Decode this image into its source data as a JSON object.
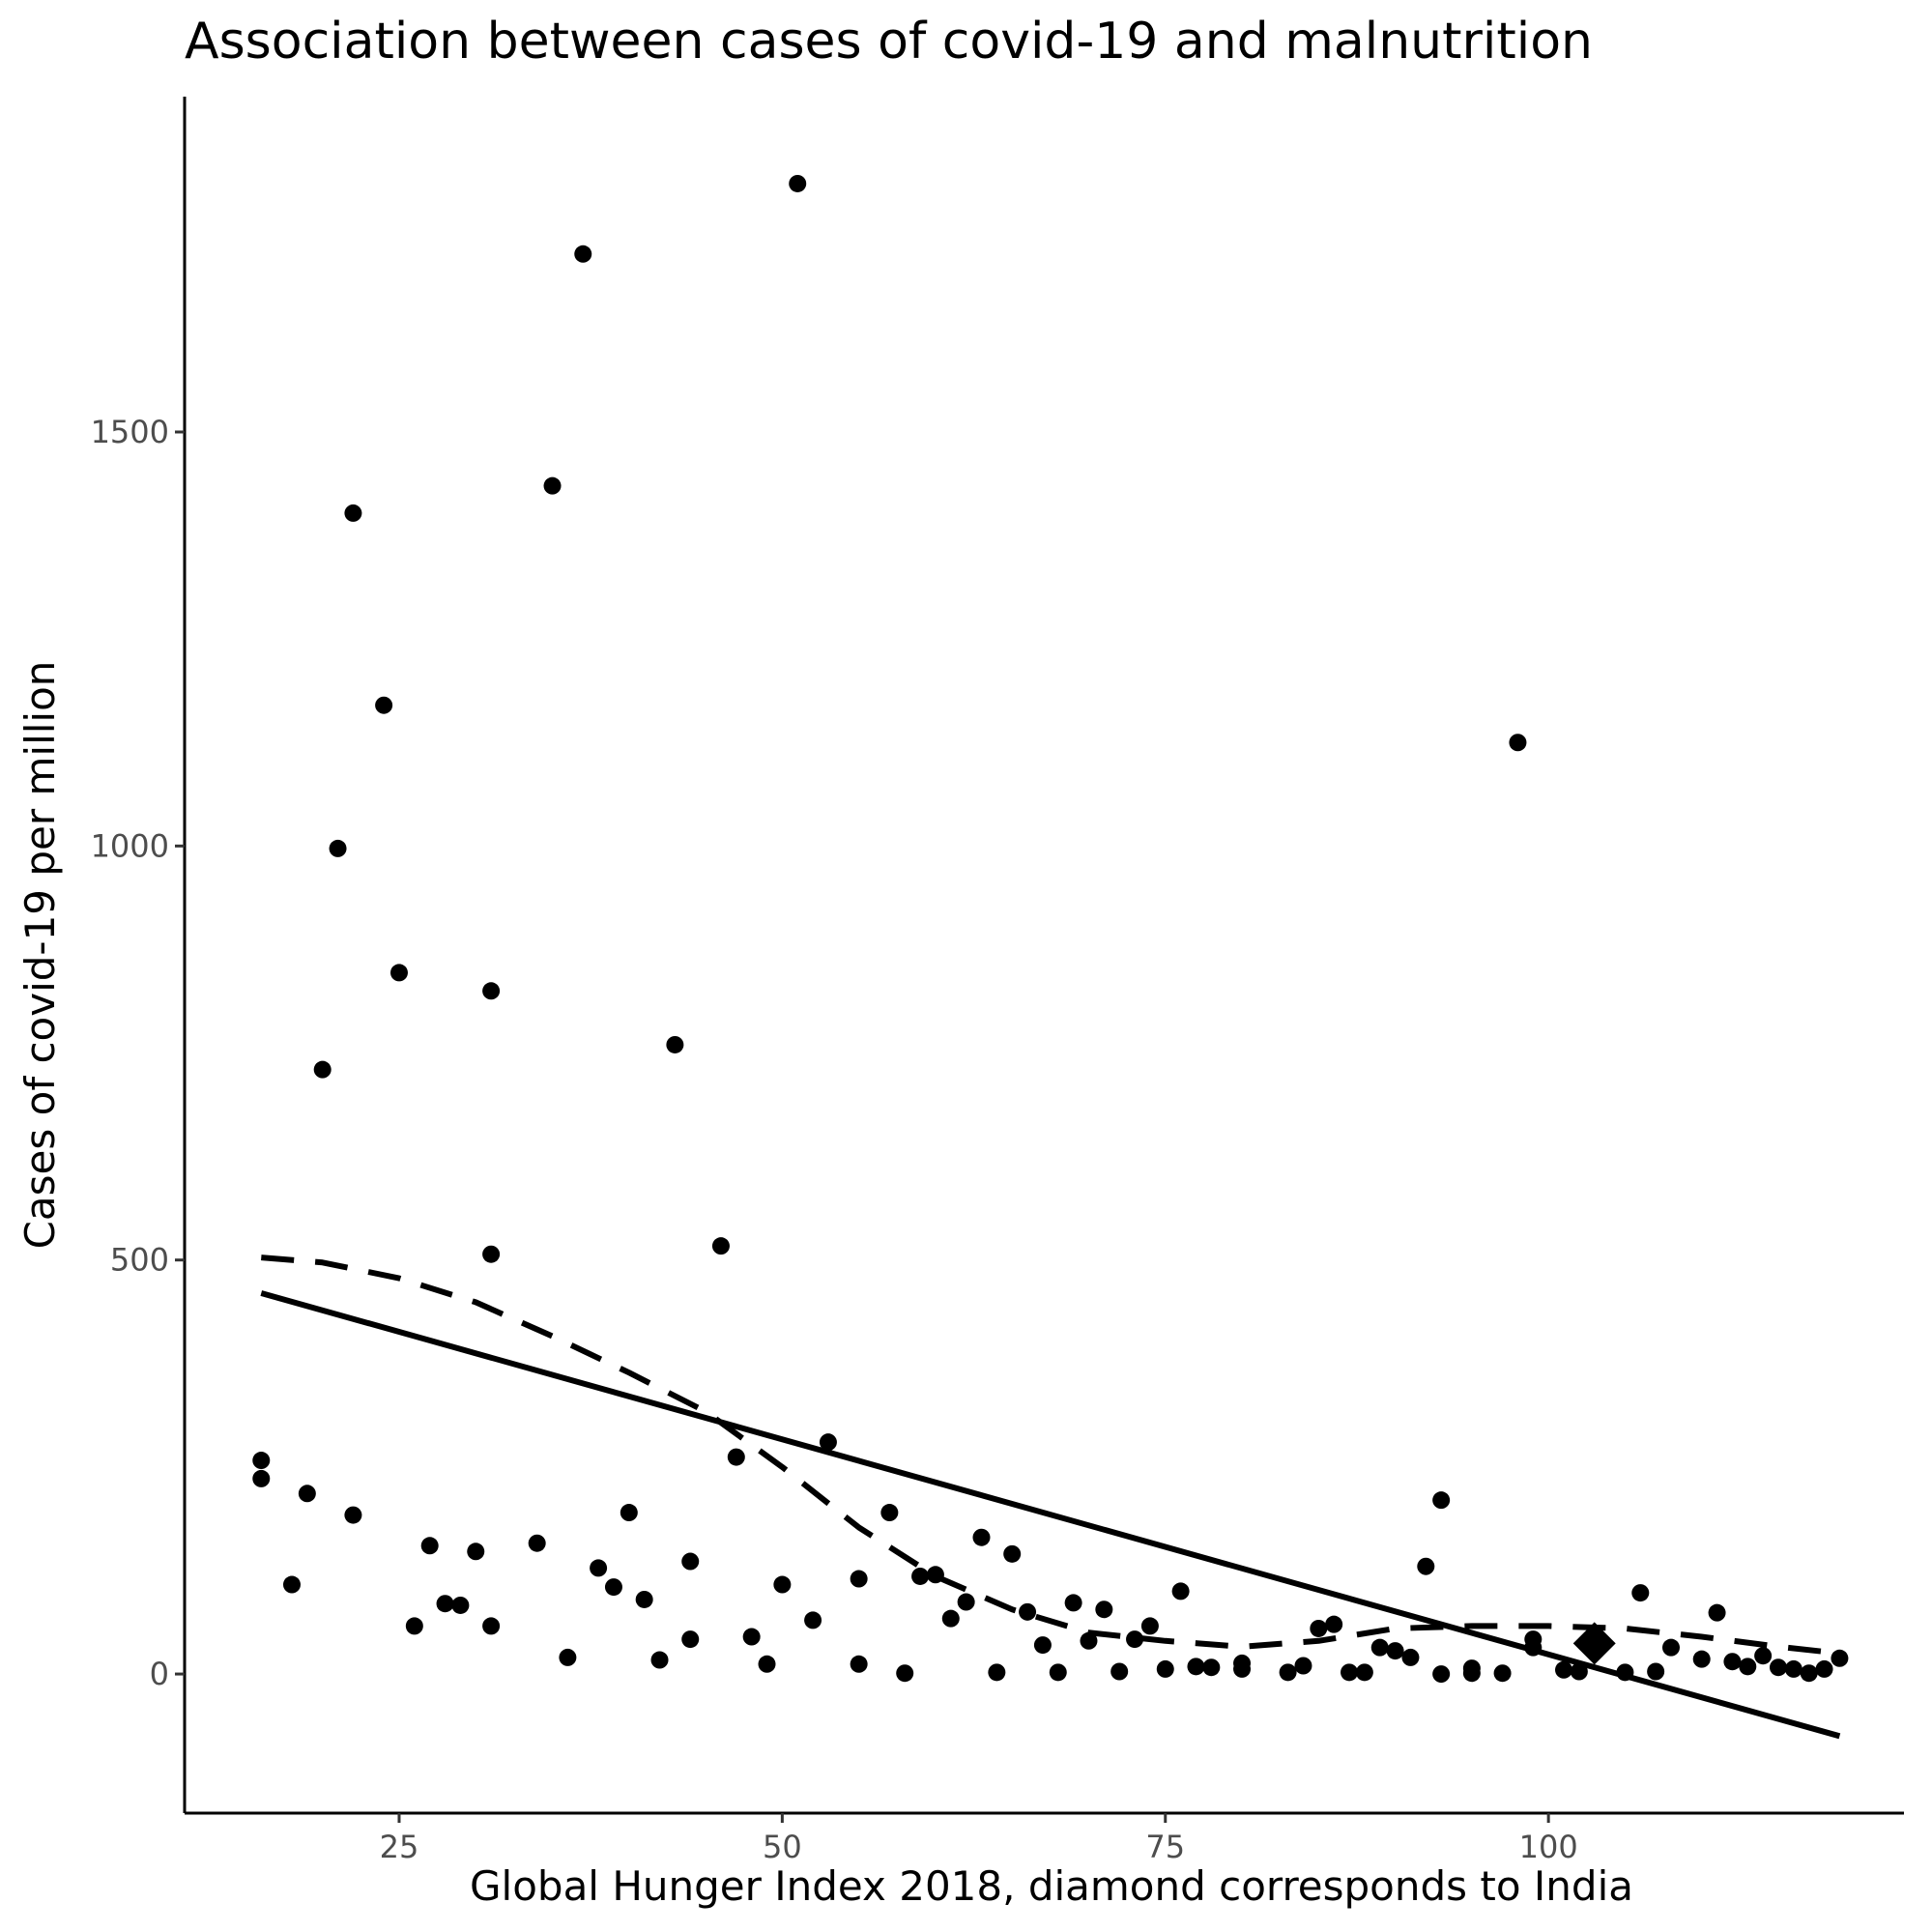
{
  "chart_data": {
    "type": "scatter",
    "title": "Association between cases of covid-19 and malnutrition",
    "xlabel": "Global Hunger Index 2018, diamond corresponds to India",
    "ylabel": "Cases of covid-19 per million",
    "xlim": [
      11,
      123.2
    ],
    "ylim": [
      -168,
      1905
    ],
    "x_ticks": [
      25,
      50,
      75,
      100
    ],
    "y_ticks": [
      0,
      500,
      1000,
      1500
    ],
    "x_tick_labels": [
      "25",
      "50",
      "75",
      "100"
    ],
    "y_tick_labels": [
      "0",
      "500",
      "1000",
      "1500"
    ],
    "grid": false,
    "legend": "none",
    "colors": {
      "points": "#000000",
      "lines": "#000000",
      "axis": "#000000",
      "tick_text": "#4d4d4d"
    },
    "points": [
      [
        51,
        1800
      ],
      [
        37,
        1715
      ],
      [
        35,
        1435
      ],
      [
        22,
        1402
      ],
      [
        24,
        1170
      ],
      [
        21,
        997
      ],
      [
        25,
        847
      ],
      [
        31,
        825
      ],
      [
        20,
        730
      ],
      [
        43,
        760
      ],
      [
        46,
        517
      ],
      [
        31,
        507
      ],
      [
        98,
        1125
      ],
      [
        16,
        258
      ],
      [
        16,
        236
      ],
      [
        19,
        218
      ],
      [
        22,
        192
      ],
      [
        18,
        108
      ],
      [
        26,
        58
      ],
      [
        27,
        155
      ],
      [
        28,
        85
      ],
      [
        29,
        83
      ],
      [
        30,
        148
      ],
      [
        31,
        58
      ],
      [
        34,
        158
      ],
      [
        36,
        20
      ],
      [
        38,
        128
      ],
      [
        39,
        105
      ],
      [
        40,
        195
      ],
      [
        41,
        90
      ],
      [
        42,
        17
      ],
      [
        44,
        42
      ],
      [
        44,
        136
      ],
      [
        47,
        262
      ],
      [
        48,
        45
      ],
      [
        49,
        12
      ],
      [
        50,
        108
      ],
      [
        52,
        65
      ],
      [
        53,
        280
      ],
      [
        55,
        115
      ],
      [
        55,
        12
      ],
      [
        57,
        195
      ],
      [
        58,
        1
      ],
      [
        59,
        118
      ],
      [
        60,
        120
      ],
      [
        61,
        67
      ],
      [
        62,
        87
      ],
      [
        63,
        165
      ],
      [
        64,
        2
      ],
      [
        65,
        145
      ],
      [
        66,
        75
      ],
      [
        67,
        35
      ],
      [
        68,
        2
      ],
      [
        69,
        86
      ],
      [
        70,
        40
      ],
      [
        71,
        78
      ],
      [
        72,
        3
      ],
      [
        73,
        42
      ],
      [
        74,
        58
      ],
      [
        75,
        6
      ],
      [
        76,
        100
      ],
      [
        77,
        9
      ],
      [
        78,
        8
      ],
      [
        80,
        13
      ],
      [
        80,
        6
      ],
      [
        83,
        2
      ],
      [
        84,
        10
      ],
      [
        85,
        55
      ],
      [
        86,
        60
      ],
      [
        87,
        2
      ],
      [
        88,
        2
      ],
      [
        89,
        32
      ],
      [
        90,
        28
      ],
      [
        91,
        20
      ],
      [
        92,
        130
      ],
      [
        93,
        210
      ],
      [
        93,
        0
      ],
      [
        95,
        7
      ],
      [
        95,
        1
      ],
      [
        97,
        1
      ],
      [
        99,
        32
      ],
      [
        99,
        42
      ],
      [
        101,
        5
      ],
      [
        102,
        3
      ],
      [
        105,
        2
      ],
      [
        106,
        98
      ],
      [
        107,
        3
      ],
      [
        108,
        32
      ],
      [
        110,
        18
      ],
      [
        111,
        74
      ],
      [
        112,
        15
      ],
      [
        113,
        9
      ],
      [
        114,
        22
      ],
      [
        115,
        8
      ],
      [
        116,
        6
      ],
      [
        117,
        1
      ],
      [
        118,
        6
      ],
      [
        119,
        19
      ]
    ],
    "highlight_point": {
      "label": "India",
      "marker": "diamond",
      "x": 103,
      "y": 37
    },
    "linear_fit": {
      "style": "solid",
      "x": [
        16,
        119
      ],
      "y": [
        460,
        -75
      ]
    },
    "smooth_fit": {
      "style": "dashed",
      "x": [
        16,
        20,
        25,
        30,
        35,
        40,
        45,
        50,
        55,
        60,
        65,
        70,
        75,
        80,
        85,
        90,
        95,
        100,
        105,
        110,
        115,
        119
      ],
      "y": [
        503,
        497,
        478,
        449,
        408,
        364,
        317,
        250,
        177,
        118,
        78,
        50,
        40,
        33,
        40,
        55,
        58,
        58,
        55,
        45,
        33,
        25
      ]
    }
  }
}
